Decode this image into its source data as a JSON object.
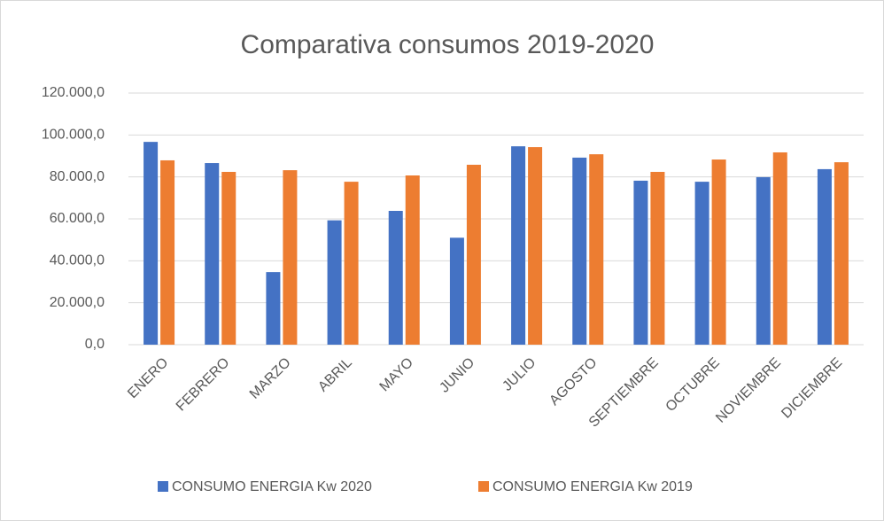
{
  "chart_data": {
    "type": "bar",
    "title": "Comparativa consumos 2019-2020",
    "categories": [
      "ENERO",
      "FEBRERO",
      "MARZO",
      "ABRIL",
      "MAYO",
      "JUNIO",
      "JULIO",
      "AGOSTO",
      "SEPTIEMBRE",
      "OCTUBRE",
      "NOVIEMBRE",
      "DICIEMBRE"
    ],
    "series": [
      {
        "name": "CONSUMO ENERGIA Kw 2020",
        "color": "#4472c4",
        "values": [
          96700,
          86600,
          34600,
          59300,
          63800,
          51000,
          94600,
          89200,
          78200,
          77700,
          79900,
          83700
        ]
      },
      {
        "name": "CONSUMO ENERGIA Kw 2019",
        "color": "#ed7d31",
        "values": [
          87900,
          82400,
          83200,
          77700,
          80700,
          85800,
          94200,
          90800,
          82400,
          88300,
          91700,
          87000
        ]
      }
    ],
    "ylim": [
      0,
      120000
    ],
    "yticks": [
      {
        "value": 0,
        "label": "0,0"
      },
      {
        "value": 20000,
        "label": "20.000,0"
      },
      {
        "value": 40000,
        "label": "40.000,0"
      },
      {
        "value": 60000,
        "label": "60.000,0"
      },
      {
        "value": 80000,
        "label": "80.000,0"
      },
      {
        "value": 100000,
        "label": "100.000,0"
      },
      {
        "value": 120000,
        "label": "120.000,0"
      }
    ],
    "grid": true,
    "legend": "bottom"
  }
}
